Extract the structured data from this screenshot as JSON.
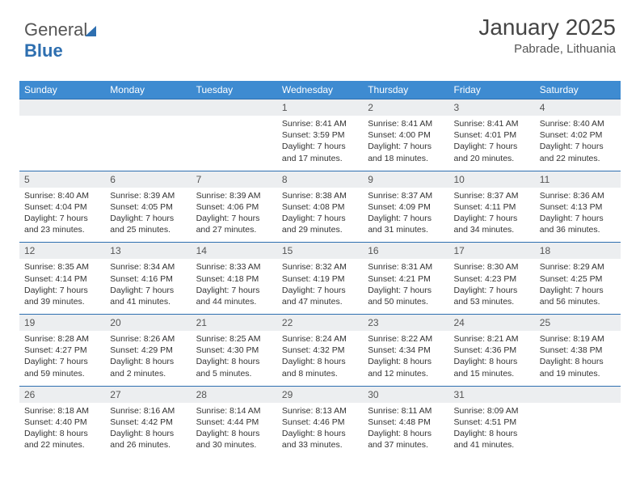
{
  "logo": {
    "text1": "General",
    "text2": "Blue"
  },
  "title": "January 2025",
  "location": "Pabrade, Lithuania",
  "colors": {
    "header_bg": "#3e8bd1",
    "header_text": "#ffffff",
    "daynum_bg": "#eceef0",
    "daynum_border": "#2e6fb0",
    "text": "#333333",
    "title_text": "#444444"
  },
  "weekdays": [
    "Sunday",
    "Monday",
    "Tuesday",
    "Wednesday",
    "Thursday",
    "Friday",
    "Saturday"
  ],
  "weeks": [
    [
      {
        "n": "",
        "sr": "",
        "ss": "",
        "dl1": "",
        "dl2": ""
      },
      {
        "n": "",
        "sr": "",
        "ss": "",
        "dl1": "",
        "dl2": ""
      },
      {
        "n": "",
        "sr": "",
        "ss": "",
        "dl1": "",
        "dl2": ""
      },
      {
        "n": "1",
        "sr": "Sunrise: 8:41 AM",
        "ss": "Sunset: 3:59 PM",
        "dl1": "Daylight: 7 hours",
        "dl2": "and 17 minutes."
      },
      {
        "n": "2",
        "sr": "Sunrise: 8:41 AM",
        "ss": "Sunset: 4:00 PM",
        "dl1": "Daylight: 7 hours",
        "dl2": "and 18 minutes."
      },
      {
        "n": "3",
        "sr": "Sunrise: 8:41 AM",
        "ss": "Sunset: 4:01 PM",
        "dl1": "Daylight: 7 hours",
        "dl2": "and 20 minutes."
      },
      {
        "n": "4",
        "sr": "Sunrise: 8:40 AM",
        "ss": "Sunset: 4:02 PM",
        "dl1": "Daylight: 7 hours",
        "dl2": "and 22 minutes."
      }
    ],
    [
      {
        "n": "5",
        "sr": "Sunrise: 8:40 AM",
        "ss": "Sunset: 4:04 PM",
        "dl1": "Daylight: 7 hours",
        "dl2": "and 23 minutes."
      },
      {
        "n": "6",
        "sr": "Sunrise: 8:39 AM",
        "ss": "Sunset: 4:05 PM",
        "dl1": "Daylight: 7 hours",
        "dl2": "and 25 minutes."
      },
      {
        "n": "7",
        "sr": "Sunrise: 8:39 AM",
        "ss": "Sunset: 4:06 PM",
        "dl1": "Daylight: 7 hours",
        "dl2": "and 27 minutes."
      },
      {
        "n": "8",
        "sr": "Sunrise: 8:38 AM",
        "ss": "Sunset: 4:08 PM",
        "dl1": "Daylight: 7 hours",
        "dl2": "and 29 minutes."
      },
      {
        "n": "9",
        "sr": "Sunrise: 8:37 AM",
        "ss": "Sunset: 4:09 PM",
        "dl1": "Daylight: 7 hours",
        "dl2": "and 31 minutes."
      },
      {
        "n": "10",
        "sr": "Sunrise: 8:37 AM",
        "ss": "Sunset: 4:11 PM",
        "dl1": "Daylight: 7 hours",
        "dl2": "and 34 minutes."
      },
      {
        "n": "11",
        "sr": "Sunrise: 8:36 AM",
        "ss": "Sunset: 4:13 PM",
        "dl1": "Daylight: 7 hours",
        "dl2": "and 36 minutes."
      }
    ],
    [
      {
        "n": "12",
        "sr": "Sunrise: 8:35 AM",
        "ss": "Sunset: 4:14 PM",
        "dl1": "Daylight: 7 hours",
        "dl2": "and 39 minutes."
      },
      {
        "n": "13",
        "sr": "Sunrise: 8:34 AM",
        "ss": "Sunset: 4:16 PM",
        "dl1": "Daylight: 7 hours",
        "dl2": "and 41 minutes."
      },
      {
        "n": "14",
        "sr": "Sunrise: 8:33 AM",
        "ss": "Sunset: 4:18 PM",
        "dl1": "Daylight: 7 hours",
        "dl2": "and 44 minutes."
      },
      {
        "n": "15",
        "sr": "Sunrise: 8:32 AM",
        "ss": "Sunset: 4:19 PM",
        "dl1": "Daylight: 7 hours",
        "dl2": "and 47 minutes."
      },
      {
        "n": "16",
        "sr": "Sunrise: 8:31 AM",
        "ss": "Sunset: 4:21 PM",
        "dl1": "Daylight: 7 hours",
        "dl2": "and 50 minutes."
      },
      {
        "n": "17",
        "sr": "Sunrise: 8:30 AM",
        "ss": "Sunset: 4:23 PM",
        "dl1": "Daylight: 7 hours",
        "dl2": "and 53 minutes."
      },
      {
        "n": "18",
        "sr": "Sunrise: 8:29 AM",
        "ss": "Sunset: 4:25 PM",
        "dl1": "Daylight: 7 hours",
        "dl2": "and 56 minutes."
      }
    ],
    [
      {
        "n": "19",
        "sr": "Sunrise: 8:28 AM",
        "ss": "Sunset: 4:27 PM",
        "dl1": "Daylight: 7 hours",
        "dl2": "and 59 minutes."
      },
      {
        "n": "20",
        "sr": "Sunrise: 8:26 AM",
        "ss": "Sunset: 4:29 PM",
        "dl1": "Daylight: 8 hours",
        "dl2": "and 2 minutes."
      },
      {
        "n": "21",
        "sr": "Sunrise: 8:25 AM",
        "ss": "Sunset: 4:30 PM",
        "dl1": "Daylight: 8 hours",
        "dl2": "and 5 minutes."
      },
      {
        "n": "22",
        "sr": "Sunrise: 8:24 AM",
        "ss": "Sunset: 4:32 PM",
        "dl1": "Daylight: 8 hours",
        "dl2": "and 8 minutes."
      },
      {
        "n": "23",
        "sr": "Sunrise: 8:22 AM",
        "ss": "Sunset: 4:34 PM",
        "dl1": "Daylight: 8 hours",
        "dl2": "and 12 minutes."
      },
      {
        "n": "24",
        "sr": "Sunrise: 8:21 AM",
        "ss": "Sunset: 4:36 PM",
        "dl1": "Daylight: 8 hours",
        "dl2": "and 15 minutes."
      },
      {
        "n": "25",
        "sr": "Sunrise: 8:19 AM",
        "ss": "Sunset: 4:38 PM",
        "dl1": "Daylight: 8 hours",
        "dl2": "and 19 minutes."
      }
    ],
    [
      {
        "n": "26",
        "sr": "Sunrise: 8:18 AM",
        "ss": "Sunset: 4:40 PM",
        "dl1": "Daylight: 8 hours",
        "dl2": "and 22 minutes."
      },
      {
        "n": "27",
        "sr": "Sunrise: 8:16 AM",
        "ss": "Sunset: 4:42 PM",
        "dl1": "Daylight: 8 hours",
        "dl2": "and 26 minutes."
      },
      {
        "n": "28",
        "sr": "Sunrise: 8:14 AM",
        "ss": "Sunset: 4:44 PM",
        "dl1": "Daylight: 8 hours",
        "dl2": "and 30 minutes."
      },
      {
        "n": "29",
        "sr": "Sunrise: 8:13 AM",
        "ss": "Sunset: 4:46 PM",
        "dl1": "Daylight: 8 hours",
        "dl2": "and 33 minutes."
      },
      {
        "n": "30",
        "sr": "Sunrise: 8:11 AM",
        "ss": "Sunset: 4:48 PM",
        "dl1": "Daylight: 8 hours",
        "dl2": "and 37 minutes."
      },
      {
        "n": "31",
        "sr": "Sunrise: 8:09 AM",
        "ss": "Sunset: 4:51 PM",
        "dl1": "Daylight: 8 hours",
        "dl2": "and 41 minutes."
      },
      {
        "n": "",
        "sr": "",
        "ss": "",
        "dl1": "",
        "dl2": ""
      }
    ]
  ]
}
